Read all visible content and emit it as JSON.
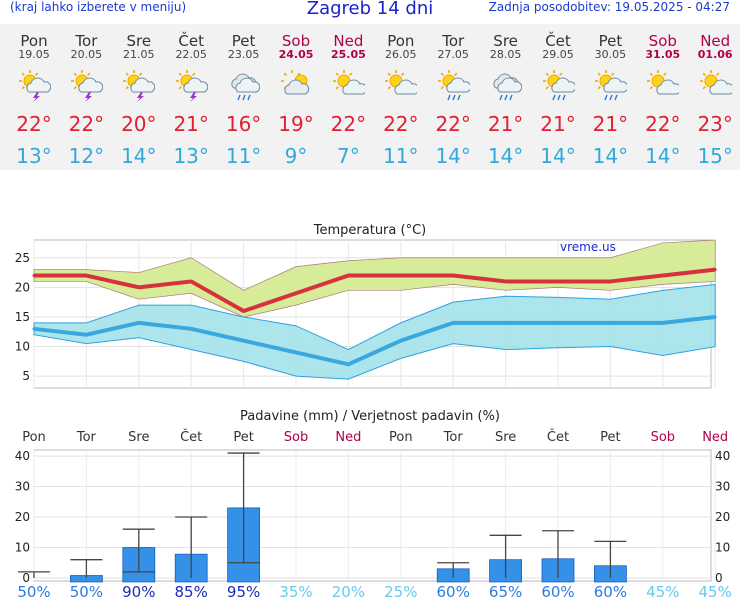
{
  "header": {
    "note": "(kraj lahko izberete v meniju)",
    "title": "Zagreb 14 dni",
    "updated": "Zadnja posodobitev: 19.05.2025 - 04:27"
  },
  "days": [
    {
      "name": "Pon",
      "date": "19.05",
      "weekend": false,
      "icon": "sun-cloud-thunder-icon",
      "tmax": "22°",
      "tmin": "13°"
    },
    {
      "name": "Tor",
      "date": "20.05",
      "weekend": false,
      "icon": "sun-cloud-thunder-icon",
      "tmax": "22°",
      "tmin": "12°"
    },
    {
      "name": "Sre",
      "date": "21.05",
      "weekend": false,
      "icon": "sun-cloud-thunder-icon",
      "tmax": "20°",
      "tmin": "14°"
    },
    {
      "name": "Čet",
      "date": "22.05",
      "weekend": false,
      "icon": "sun-cloud-thunder-icon",
      "tmax": "21°",
      "tmin": "13°"
    },
    {
      "name": "Pet",
      "date": "23.05",
      "weekend": false,
      "icon": "cloud-rain-icon",
      "tmax": "16°",
      "tmin": "11°"
    },
    {
      "name": "Sob",
      "date": "24.05",
      "weekend": true,
      "icon": "cloud-sun-icon",
      "tmax": "19°",
      "tmin": "9°"
    },
    {
      "name": "Ned",
      "date": "25.05",
      "weekend": true,
      "icon": "sun-cloud-icon",
      "tmax": "22°",
      "tmin": "7°"
    },
    {
      "name": "Pon",
      "date": "26.05",
      "weekend": false,
      "icon": "sun-cloud-icon",
      "tmax": "22°",
      "tmin": "11°"
    },
    {
      "name": "Tor",
      "date": "27.05",
      "weekend": false,
      "icon": "sun-cloud-rain-icon",
      "tmax": "22°",
      "tmin": "14°"
    },
    {
      "name": "Sre",
      "date": "28.05",
      "weekend": false,
      "icon": "cloud-rain-icon",
      "tmax": "21°",
      "tmin": "14°"
    },
    {
      "name": "Čet",
      "date": "29.05",
      "weekend": false,
      "icon": "sun-cloud-rain-icon",
      "tmax": "21°",
      "tmin": "14°"
    },
    {
      "name": "Pet",
      "date": "30.05",
      "weekend": false,
      "icon": "sun-cloud-rain-icon",
      "tmax": "21°",
      "tmin": "14°"
    },
    {
      "name": "Sob",
      "date": "31.05",
      "weekend": true,
      "icon": "sun-cloud-icon",
      "tmax": "22°",
      "tmin": "14°"
    },
    {
      "name": "Ned",
      "date": "01.06",
      "weekend": true,
      "icon": "sun-cloud-icon",
      "tmax": "23°",
      "tmin": "15°"
    }
  ],
  "colors": {
    "tmax_line": "#d8303c",
    "tmin_line": "#3aa8e0",
    "tmax_band": "#d6ec98",
    "tmin_band": "#9fe0ea",
    "overlap": "#8fd888",
    "bar": "#3590e8",
    "weekend": "#b0004a"
  },
  "chart_data": [
    {
      "type": "line",
      "title": "Temperatura (°C)",
      "watermark": "vreme.us",
      "categories": [
        "Pon",
        "Tor",
        "Sre",
        "Čet",
        "Pet",
        "Sob",
        "Ned",
        "Pon",
        "Tor",
        "Sre",
        "Čet",
        "Pet",
        "Sob",
        "Ned"
      ],
      "yticks": [
        5,
        10,
        15,
        20,
        25
      ],
      "ylim": [
        3,
        28
      ],
      "series": [
        {
          "values": [
            22,
            22,
            20,
            21,
            16,
            19,
            22,
            22,
            22,
            21,
            21,
            21,
            22,
            23
          ],
          "band_low": [
            21,
            21,
            18,
            19,
            15,
            17,
            19.5,
            19.5,
            20.5,
            19.5,
            20,
            19.5,
            20.5,
            21
          ],
          "band_high": [
            23,
            23,
            22.5,
            25,
            19.5,
            23.5,
            24.5,
            25,
            25,
            25,
            25,
            25,
            27.5,
            28
          ]
        },
        {
          "values": [
            13,
            12,
            14,
            13,
            11,
            9,
            7,
            11,
            14,
            14,
            14,
            14,
            14,
            15
          ],
          "band_low": [
            12,
            10.5,
            11.5,
            9.5,
            7.5,
            5,
            4.5,
            8,
            10.5,
            9.5,
            9.8,
            10,
            8.5,
            10
          ],
          "band_high": [
            14,
            14,
            17,
            17,
            15,
            13.5,
            9.5,
            14,
            17.5,
            18.5,
            18.3,
            18,
            19.5,
            20.5
          ]
        }
      ]
    },
    {
      "type": "bar",
      "title": "Padavine (mm) / Verjetnost padavin (%)",
      "categories": [
        "Pon",
        "Tor",
        "Sre",
        "Čet",
        "Pet",
        "Sob",
        "Ned",
        "Pon",
        "Tor",
        "Sre",
        "Čet",
        "Pet",
        "Sob",
        "Ned"
      ],
      "yticks": [
        0,
        10,
        20,
        30,
        40
      ],
      "ylim": [
        -1,
        42
      ],
      "values": [
        0,
        0.8,
        10,
        7.8,
        23,
        0,
        0,
        0,
        3,
        6,
        6.3,
        4,
        0,
        0
      ],
      "err_low": [
        0,
        0,
        2,
        0,
        5,
        0,
        0,
        0,
        0,
        0,
        0,
        0,
        0,
        0
      ],
      "err_high": [
        2,
        6,
        16,
        20,
        41,
        0,
        0,
        0,
        5,
        14,
        15.5,
        12,
        0,
        0
      ],
      "probabilities": [
        "50%",
        "50%",
        "90%",
        "85%",
        "95%",
        "35%",
        "20%",
        "25%",
        "60%",
        "65%",
        "60%",
        "60%",
        "45%",
        "45%"
      ]
    }
  ]
}
